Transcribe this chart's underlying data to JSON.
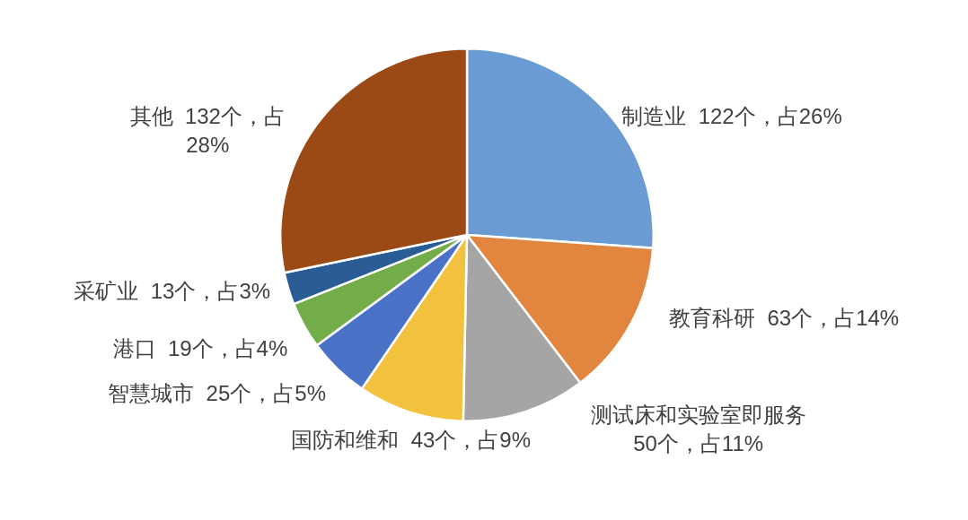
{
  "chart_data": {
    "type": "pie",
    "categories": [
      "制造业",
      "教育科研",
      "测试床和实验室即服务",
      "国防和维和",
      "智慧城市",
      "港口",
      "采矿业",
      "其他"
    ],
    "values": [
      122,
      63,
      50,
      43,
      25,
      19,
      13,
      132
    ],
    "value_labels": [
      "122个，占26%",
      "63个，占14%",
      "50个，占11%",
      "43个，占9%",
      "25个，占5%",
      "19个，占4%",
      "13个，占3%",
      "132个，占28%"
    ],
    "colors": [
      "#6a9bd3",
      "#e2853e",
      "#a5a5a5",
      "#f2c23e",
      "#4a72c6",
      "#72ad4a",
      "#2a5d96",
      "#9b4a16"
    ]
  }
}
